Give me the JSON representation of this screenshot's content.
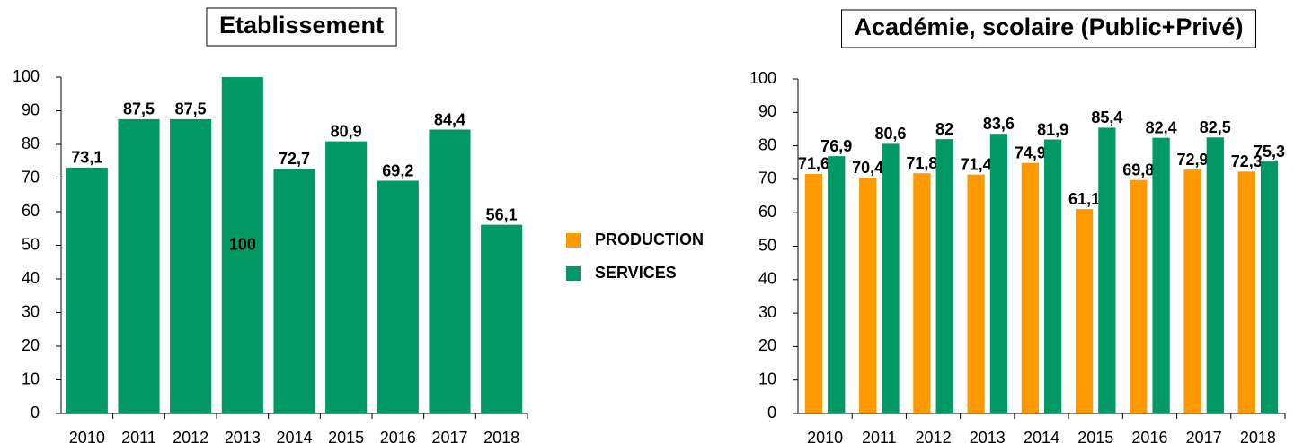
{
  "chart_data": [
    {
      "type": "bar",
      "title": "Etablissement",
      "categories": [
        "2010",
        "2011",
        "2012",
        "2013",
        "2014",
        "2015",
        "2016",
        "2017",
        "2018"
      ],
      "values": [
        73.1,
        87.5,
        87.5,
        100,
        72.7,
        80.9,
        69.2,
        84.4,
        56.1
      ],
      "value_labels": [
        "73,1",
        "87,5",
        "87,5",
        "100",
        "72,7",
        "80,9",
        "69,2",
        "84,4",
        "56,1"
      ],
      "color": "#009966",
      "ylim": [
        0,
        100
      ],
      "yticks": [
        0,
        10,
        20,
        30,
        40,
        50,
        60,
        70,
        80,
        90,
        100
      ]
    },
    {
      "type": "grouped_bar",
      "title": "Académie, scolaire (Public+Privé)",
      "categories": [
        "2010",
        "2011",
        "2012",
        "2013",
        "2014",
        "2015",
        "2016",
        "2017",
        "2018"
      ],
      "series": [
        {
          "name": "PRODUCTION",
          "color": "#ff9900",
          "values": [
            71.6,
            70.4,
            71.8,
            71.4,
            74.9,
            61.1,
            69.8,
            72.9,
            72.3
          ],
          "value_labels": [
            "71,6",
            "70,4",
            "71,8",
            "71,4",
            "74,9",
            "61,1",
            "69,8",
            "72,9",
            "72,3"
          ]
        },
        {
          "name": "SERVICES",
          "color": "#009966",
          "values": [
            76.9,
            80.6,
            82,
            83.6,
            81.9,
            85.4,
            82.4,
            82.5,
            75.3
          ],
          "value_labels": [
            "76,9",
            "80,6",
            "82",
            "83,6",
            "81,9",
            "85,4",
            "82,4",
            "82,5",
            "75,3"
          ]
        }
      ],
      "ylim": [
        0,
        100
      ],
      "yticks": [
        0,
        10,
        20,
        30,
        40,
        50,
        60,
        70,
        80,
        90,
        100
      ],
      "legend": "left"
    }
  ]
}
